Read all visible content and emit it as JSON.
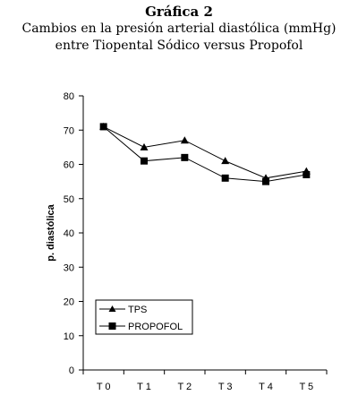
{
  "figure": {
    "number_label": "Gráfica 2",
    "title_line1": "Cambios en la presión arterial diastólica (mmHg)",
    "title_line2": "entre Tiopental Sódico versus Propofol"
  },
  "chart_data": {
    "type": "line",
    "categories": [
      "T 0",
      "T 1",
      "T 2",
      "T 3",
      "T 4",
      "T 5"
    ],
    "series": [
      {
        "name": "TPS",
        "marker": "triangle",
        "values": [
          71,
          65,
          67,
          61,
          56,
          58
        ]
      },
      {
        "name": "PROPOFOL",
        "marker": "square",
        "values": [
          71,
          61,
          62,
          56,
          55,
          57
        ]
      }
    ],
    "ylabel": "p. diastólica",
    "xlabel": "",
    "ylim": [
      0,
      80
    ],
    "yticks": [
      0,
      10,
      20,
      30,
      40,
      50,
      60,
      70,
      80
    ],
    "grid": false,
    "legend_position": "bottom-left",
    "line_color": "#000000"
  }
}
